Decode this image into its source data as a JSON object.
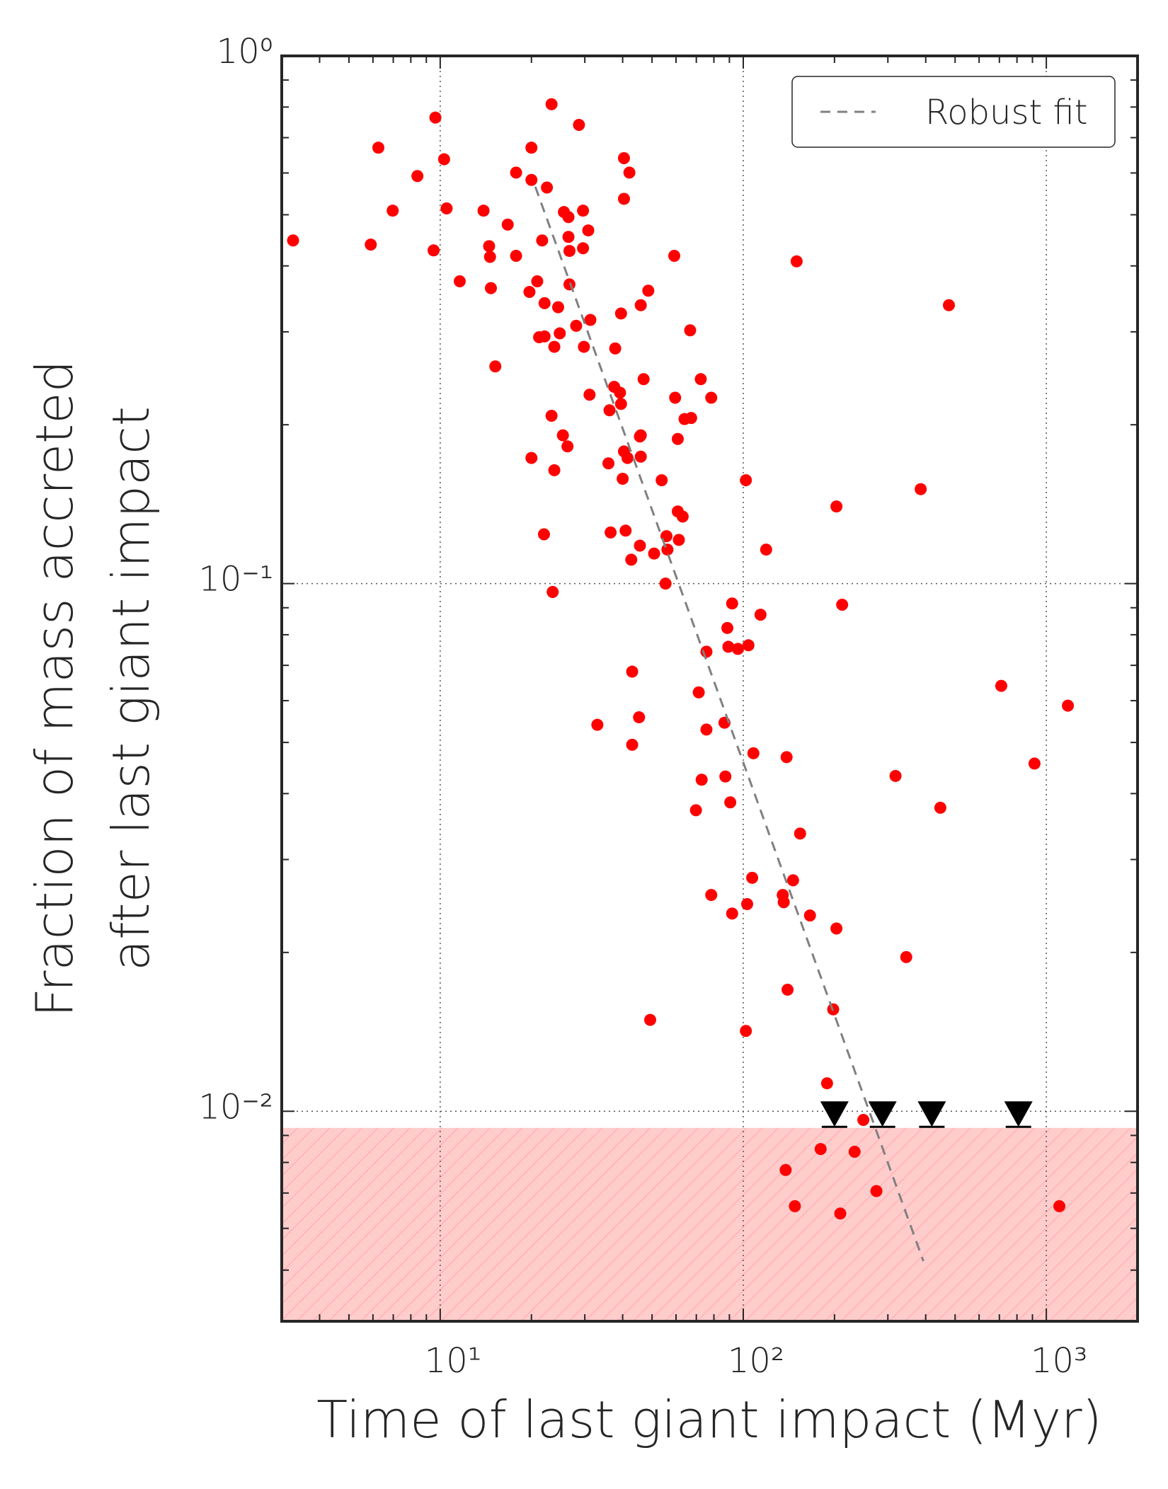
{
  "chart_data": {
    "type": "scatter",
    "xlabel": "Time of last giant impact (Myr)",
    "ylabel": [
      "Fraction of mass accreted",
      "after last giant impact"
    ],
    "log_x": true,
    "log_y": true,
    "xlim": [
      3,
      2000
    ],
    "ylim": [
      0.004,
      1
    ],
    "xticks": [
      {
        "value": 10,
        "label": "10¹"
      },
      {
        "value": 100,
        "label": "10²"
      },
      {
        "value": 1000,
        "label": "10³"
      }
    ],
    "yticks": [
      {
        "value": 0.01,
        "label": "10⁻²"
      },
      {
        "value": 0.1,
        "label": "10⁻¹"
      },
      {
        "value": 1,
        "label": "10⁰"
      }
    ],
    "grid": true,
    "grid_style": "dotted",
    "legend": "upper right",
    "shaded_region": {
      "ylim": [
        0.004,
        0.0093
      ],
      "color": "#ffcccc",
      "hatch": true
    },
    "series": [
      {
        "marker": "circle",
        "color": "#ff0000",
        "x": [
          3.27,
          6.25,
          5.9,
          6.97,
          8.41,
          9.64,
          9.51,
          10.3,
          10.5,
          11.6,
          13.9,
          14.5,
          14.6,
          14.7,
          15.2,
          16.7,
          17.8,
          17.8,
          20.0,
          19.7,
          20.0,
          20.9,
          21.7,
          22.1,
          21.2,
          22.1,
          22.5,
          23.3,
          23.8,
          24.5,
          24.8,
          25.6,
          26.5,
          26.7,
          26.5,
          26.7,
          28.1,
          28.7,
          29.6,
          29.6,
          29.8,
          30.8,
          31.3,
          23.3,
          25.4,
          26.3,
          20.0,
          23.8,
          22.0,
          23.5,
          31.1,
          36.2,
          35.9,
          36.5,
          37.5,
          39.2,
          39.5,
          40.4,
          40.4,
          42.1,
          39.5,
          37.8,
          40.4,
          41.5,
          40.0,
          40.9,
          42.7,
          45.6,
          45.9,
          45.9,
          45.9,
          46.9,
          45.6,
          48.6,
          50.8,
          53.8,
          55.8,
          56.2,
          59.2,
          59.6,
          60.8,
          60.8,
          63.1,
          61.3,
          64.0,
          66.8,
          67.3,
          72.4,
          78.4,
          55.4,
          43.0,
          33.0,
          45.3,
          43.0,
          49.3,
          75.6,
          71.3,
          75.6,
          72.9,
          69.8,
          78.4,
          88.6,
          86.7,
          87.3,
          91.9,
          90.6,
          91.9,
          89.3,
          96.0,
          104,
          102,
          108,
          107,
          103,
          114,
          119,
          102,
          135,
          136,
          139,
          146,
          140,
          148,
          150,
          154,
          166,
          180,
          189,
          198,
          203,
          203,
          212,
          209,
          233,
          249,
          275,
          318,
          345,
          385,
          447,
          477,
          710,
          914,
          1104,
          1178,
          138
        ],
        "values": [
          0.447,
          0.67,
          0.439,
          0.509,
          0.592,
          0.764,
          0.428,
          0.637,
          0.514,
          0.374,
          0.509,
          0.436,
          0.416,
          0.363,
          0.258,
          0.479,
          0.418,
          0.601,
          0.67,
          0.357,
          0.582,
          0.374,
          0.447,
          0.34,
          0.293,
          0.294,
          0.563,
          0.81,
          0.281,
          0.334,
          0.298,
          0.506,
          0.495,
          0.427,
          0.454,
          0.369,
          0.308,
          0.74,
          0.509,
          0.432,
          0.281,
          0.467,
          0.316,
          0.208,
          0.191,
          0.182,
          0.173,
          0.164,
          0.124,
          0.0964,
          0.228,
          0.213,
          0.169,
          0.125,
          0.236,
          0.23,
          0.219,
          0.64,
          0.536,
          0.601,
          0.325,
          0.279,
          0.178,
          0.173,
          0.158,
          0.126,
          0.111,
          0.118,
          0.337,
          0.174,
          0.191,
          0.244,
          0.19,
          0.359,
          0.114,
          0.157,
          0.123,
          0.116,
          0.418,
          0.225,
          0.188,
          0.137,
          0.134,
          0.121,
          0.205,
          0.302,
          0.206,
          0.244,
          0.225,
          0.1,
          0.0681,
          0.054,
          0.0558,
          0.0495,
          0.0149,
          0.0743,
          0.0622,
          0.0529,
          0.0425,
          0.0372,
          0.0257,
          0.0824,
          0.0545,
          0.0431,
          0.0917,
          0.0385,
          0.0237,
          0.0759,
          0.0752,
          0.0764,
          0.157,
          0.0477,
          0.0277,
          0.0247,
          0.0873,
          0.116,
          0.0142,
          0.0257,
          0.0249,
          0.0469,
          0.0274,
          0.017,
          0.00661,
          0.408,
          0.0336,
          0.0235,
          0.00848,
          0.0113,
          0.0156,
          0.0222,
          0.14,
          0.0912,
          0.0064,
          0.00838,
          0.00963,
          0.00706,
          0.0432,
          0.0196,
          0.151,
          0.0376,
          0.337,
          0.064,
          0.0456,
          0.00661,
          0.0587,
          0.00774
        ]
      },
      {
        "marker": "triangle-down",
        "color": "#000000",
        "x": [
          200,
          288,
          419,
          809
        ],
        "values": [
          0.01,
          0.01,
          0.01,
          0.01
        ]
      },
      {
        "name": "Robust fit",
        "marker": "line",
        "dash": true,
        "color": "#808080",
        "x": [
          20.6,
          393
        ],
        "values": [
          0.565,
          0.0052
        ]
      }
    ]
  }
}
